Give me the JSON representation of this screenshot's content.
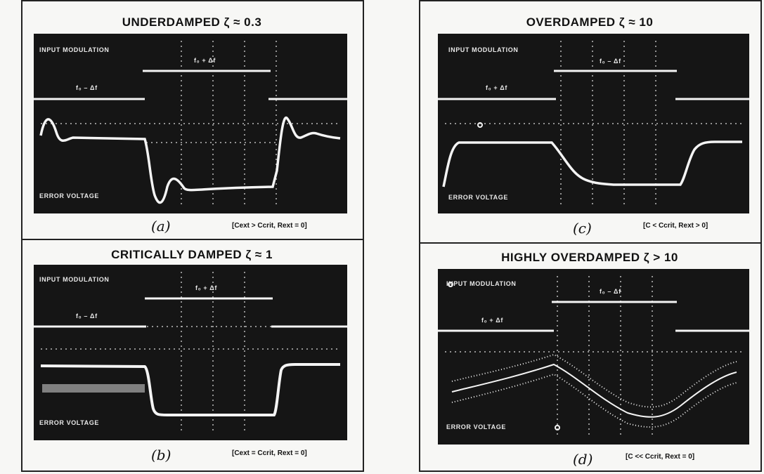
{
  "panels": [
    {
      "id": "a",
      "title": "UNDERDAMPED ζ ≈ 0.3",
      "input_label": "INPUT MODULATION",
      "error_label": "ERROR VOLTAGE",
      "f_high": "f₀ + Δf",
      "f_low": "f₀ – Δf",
      "caption": "(a)",
      "condition": "[Cext > Ccrit, Rext = 0]"
    },
    {
      "id": "b",
      "title": "CRITICALLY DAMPED ζ ≈ 1",
      "input_label": "INPUT MODULATION",
      "error_label": "ERROR VOLTAGE",
      "f_high": "f₀ + Δf",
      "f_low": "f₀ – Δf",
      "caption": "(b)",
      "condition": "[Cext = Ccrit, Rext = 0]"
    },
    {
      "id": "c",
      "title": "OVERDAMPED ζ ≈ 10",
      "input_label": "INPUT MODULATION",
      "error_label": "ERROR VOLTAGE",
      "f_high": "f₀ – Δf",
      "f_low": "f₀ + Δf",
      "caption": "(c)",
      "condition": "[C < Ccrit, Rext > 0]"
    },
    {
      "id": "d",
      "title": "HIGHLY OVERDAMPED ζ > 10",
      "input_label": "INPUT MODULATION",
      "error_label": "ERROR VOLTAGE",
      "f_high": "f₀ – Δf",
      "f_low": "f₀ + Δf",
      "caption": "(d)",
      "condition": "[C << Ccrit, Rext = 0]"
    }
  ],
  "colors": {
    "scope_bg": "#151515",
    "trace": "#f4f4f4",
    "grid": "#bdbdbd",
    "frame": "#222222"
  }
}
